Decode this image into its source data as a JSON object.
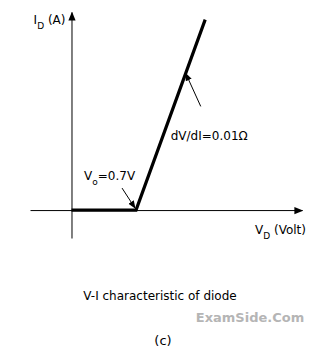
{
  "chart_data": {
    "type": "line",
    "title": "V-I characteristic of diode",
    "subtitle": "(c)",
    "watermark": "ExamSide.Com",
    "xlabel": "VD (Volt)",
    "ylabel": "ID (A)",
    "x": [
      0,
      0.7,
      1.45
    ],
    "values": [
      0,
      0,
      75
    ],
    "color": "#000000",
    "line_style": "solid",
    "xlim": [
      -0.45,
      2.5
    ],
    "ylim": [
      -11,
      78
    ],
    "xticks": [],
    "yticks": [],
    "grid": false,
    "tick_labels": false,
    "annotations": [
      {
        "text": "Vo=0.7V",
        "x": 0.7,
        "y": 0
      },
      {
        "text": "dV/dI=0.01Ω",
        "x": 1.25,
        "y": 55
      }
    ]
  }
}
